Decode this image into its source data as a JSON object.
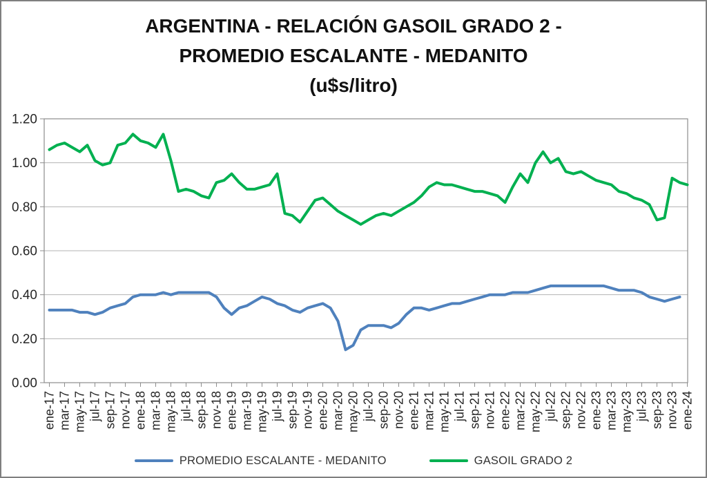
{
  "title": {
    "line1": "ARGENTINA - RELACIÓN GASOIL GRADO 2 -",
    "line2": "PROMEDIO ESCALANTE - MEDANITO",
    "line3": "(u$s/litro)"
  },
  "legend": [
    {
      "label": "PROMEDIO ESCALANTE - MEDANITO",
      "color": "#4F81BD"
    },
    {
      "label": "GASOIL GRADO 2",
      "color": "#00B050"
    }
  ],
  "colors": {
    "grid": "#b3b3b3",
    "axis": "#8c8c8c",
    "figure_border": "#7f7f7f",
    "tick_text": "#262626",
    "series_blue": "#4F81BD",
    "series_green": "#00B050"
  },
  "chart_data": {
    "type": "line",
    "title": "ARGENTINA - RELACIÓN GASOIL GRADO 2 - PROMEDIO ESCALANTE - MEDANITO (u$s/litro)",
    "ylim": [
      0.0,
      1.2
    ],
    "y_step": 0.2,
    "y_tick_labels": [
      "1.20",
      "1.00",
      "0.80",
      "0.60",
      "0.40",
      "0.20",
      "0.00"
    ],
    "grid": true,
    "legend_position": "bottom",
    "x_frequency": "monthly",
    "x_start": "ene-17",
    "x_end": "ene-24",
    "points_per_tick": 2,
    "x_tick_labels": [
      "ene-17",
      "mar-17",
      "may-17",
      "jul-17",
      "sep-17",
      "nov-17",
      "ene-18",
      "mar-18",
      "may-18",
      "jul-18",
      "sep-18",
      "nov-18",
      "ene-19",
      "mar-19",
      "may-19",
      "jul-19",
      "sep-19",
      "nov-19",
      "ene-20",
      "mar-20",
      "may-20",
      "jul-20",
      "sep-20",
      "nov-20",
      "ene-21",
      "mar-21",
      "may-21",
      "jul-21",
      "sep-21",
      "nov-21",
      "ene-22",
      "mar-22",
      "may-22",
      "jul-22",
      "sep-22",
      "nov-22",
      "ene-23",
      "mar-23",
      "may-23",
      "jul-23",
      "sep-23",
      "nov-23",
      "ene-24"
    ],
    "series": [
      {
        "name": "PROMEDIO ESCALANTE - MEDANITO",
        "color": "#4F81BD",
        "values": [
          0.33,
          0.33,
          0.33,
          0.33,
          0.32,
          0.32,
          0.31,
          0.32,
          0.34,
          0.35,
          0.36,
          0.39,
          0.4,
          0.4,
          0.4,
          0.41,
          0.4,
          0.41,
          0.41,
          0.41,
          0.41,
          0.41,
          0.39,
          0.34,
          0.31,
          0.34,
          0.35,
          0.37,
          0.39,
          0.38,
          0.36,
          0.35,
          0.33,
          0.32,
          0.34,
          0.35,
          0.36,
          0.34,
          0.28,
          0.15,
          0.17,
          0.24,
          0.26,
          0.26,
          0.26,
          0.25,
          0.27,
          0.31,
          0.34,
          0.34,
          0.33,
          0.34,
          0.35,
          0.36,
          0.36,
          0.37,
          0.38,
          0.39,
          0.4,
          0.4,
          0.4,
          0.41,
          0.41,
          0.41,
          0.42,
          0.43,
          0.44,
          0.44,
          0.44,
          0.44,
          0.44,
          0.44,
          0.44,
          0.44,
          0.43,
          0.42,
          0.42,
          0.42,
          0.41,
          0.39,
          0.38,
          0.37,
          0.38,
          0.39
        ]
      },
      {
        "name": "GASOIL GRADO 2",
        "color": "#00B050",
        "values": [
          1.06,
          1.08,
          1.09,
          1.07,
          1.05,
          1.08,
          1.01,
          0.99,
          1.0,
          1.08,
          1.09,
          1.13,
          1.1,
          1.09,
          1.07,
          1.13,
          1.01,
          0.87,
          0.88,
          0.87,
          0.85,
          0.84,
          0.91,
          0.92,
          0.95,
          0.91,
          0.88,
          0.88,
          0.89,
          0.9,
          0.95,
          0.77,
          0.76,
          0.73,
          0.78,
          0.83,
          0.84,
          0.81,
          0.78,
          0.76,
          0.74,
          0.72,
          0.74,
          0.76,
          0.77,
          0.76,
          0.78,
          0.8,
          0.82,
          0.85,
          0.89,
          0.91,
          0.9,
          0.9,
          0.89,
          0.88,
          0.87,
          0.87,
          0.86,
          0.85,
          0.82,
          0.89,
          0.95,
          0.91,
          1.0,
          1.05,
          1.0,
          1.02,
          0.96,
          0.95,
          0.96,
          0.94,
          0.92,
          0.91,
          0.9,
          0.87,
          0.86,
          0.84,
          0.83,
          0.81,
          0.74,
          0.75,
          0.93,
          0.91,
          0.9
        ]
      }
    ]
  }
}
